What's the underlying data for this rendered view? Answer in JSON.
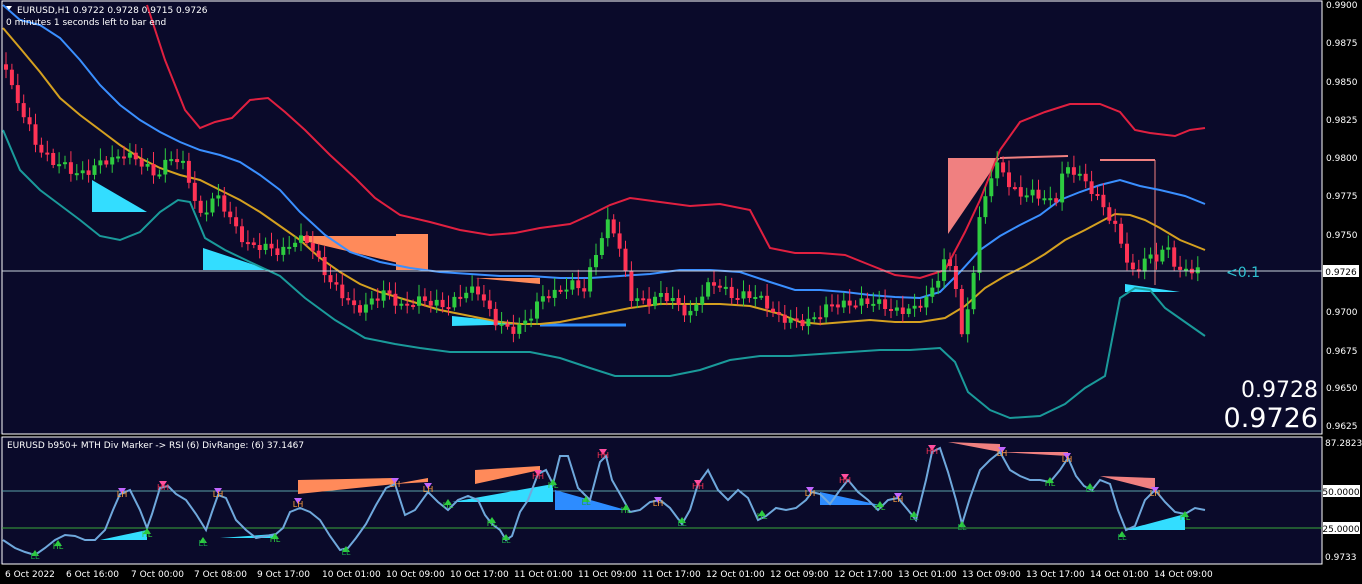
{
  "main_chart": {
    "header": "EURUSD,H1  0.9722 0.9728 0.9715 0.9726",
    "timer": "0 minutes 1 seconds left to bar end",
    "current_price": "0.9726",
    "price_label_current": "0.9726",
    "price_label_ask": "0.9728",
    "offset_label": "<0.1",
    "y_ticks": [
      "0.9900",
      "0.9875",
      "0.9850",
      "0.9825",
      "0.9800",
      "0.9775",
      "0.9750",
      "0.9725",
      "0.9700",
      "0.9675",
      "0.9650",
      "0.9625"
    ]
  },
  "indicator": {
    "title": "EURUSD b950+ MTH Div Marker -> RSI (6) DivRange: (6) 37.1467",
    "y_ticks": [
      "87.2823",
      "50.0000",
      "25.0000",
      "0.9733"
    ]
  },
  "x_axis": {
    "ticks": [
      "6 Oct 2022",
      "6 Oct 16:00",
      "7 Oct 00:00",
      "7 Oct 08:00",
      "9 Oct 17:00",
      "10 Oct 01:00",
      "10 Oct 09:00",
      "10 Oct 17:00",
      "11 Oct 01:00",
      "11 Oct 09:00",
      "11 Oct 17:00",
      "12 Oct 01:00",
      "12 Oct 09:00",
      "12 Oct 17:00",
      "13 Oct 01:00",
      "13 Oct 09:00",
      "13 Oct 17:00",
      "14 Oct 01:00",
      "14 Oct 09:00"
    ]
  },
  "markers": [
    {
      "t": "LH",
      "x": 122,
      "y": 497
    },
    {
      "t": "HH",
      "x": 163,
      "y": 490
    },
    {
      "t": "LH",
      "x": 218,
      "y": 497
    },
    {
      "t": "LH",
      "x": 298,
      "y": 507
    },
    {
      "t": "LH",
      "x": 395,
      "y": 487
    },
    {
      "t": "LH",
      "x": 428,
      "y": 492
    },
    {
      "t": "HH",
      "x": 538,
      "y": 479
    },
    {
      "t": "HH",
      "x": 603,
      "y": 458
    },
    {
      "t": "HH",
      "x": 698,
      "y": 489
    },
    {
      "t": "LH",
      "x": 658,
      "y": 506
    },
    {
      "t": "LH",
      "x": 810,
      "y": 496
    },
    {
      "t": "HH",
      "x": 845,
      "y": 483
    },
    {
      "t": "LH",
      "x": 898,
      "y": 502
    },
    {
      "t": "HH",
      "x": 932,
      "y": 454
    },
    {
      "t": "LH",
      "x": 1002,
      "y": 456
    },
    {
      "t": "LH",
      "x": 1067,
      "y": 462
    },
    {
      "t": "LH",
      "x": 1155,
      "y": 496
    },
    {
      "t": "HL",
      "x": 58,
      "y": 549
    },
    {
      "t": "LL",
      "x": 35,
      "y": 559
    },
    {
      "t": "HL",
      "x": 147,
      "y": 537
    },
    {
      "t": "LL",
      "x": 203,
      "y": 546
    },
    {
      "t": "HL",
      "x": 275,
      "y": 542
    },
    {
      "t": "LL",
      "x": 346,
      "y": 555
    },
    {
      "t": "HL",
      "x": 448,
      "y": 508
    },
    {
      "t": "HL",
      "x": 492,
      "y": 526
    },
    {
      "t": "LL",
      "x": 506,
      "y": 543
    },
    {
      "t": "HL",
      "x": 553,
      "y": 488
    },
    {
      "t": "LL",
      "x": 586,
      "y": 505
    },
    {
      "t": "HL",
      "x": 626,
      "y": 513
    },
    {
      "t": "LL",
      "x": 682,
      "y": 526
    },
    {
      "t": "HL",
      "x": 762,
      "y": 519
    },
    {
      "t": "HL",
      "x": 880,
      "y": 510
    },
    {
      "t": "LL",
      "x": 914,
      "y": 520
    },
    {
      "t": "LL",
      "x": 962,
      "y": 530
    },
    {
      "t": "HL",
      "x": 1050,
      "y": 486
    },
    {
      "t": "LL",
      "x": 1090,
      "y": 492
    },
    {
      "t": "LL",
      "x": 1122,
      "y": 540
    },
    {
      "t": "HL",
      "x": 1185,
      "y": 520
    }
  ],
  "colors": {
    "background": "#0a0a2a",
    "bull": "#2ecc40",
    "bear": "#ff3355",
    "upper_band": "#e02040",
    "lower_band": "#1a9a9a",
    "ma_fast": "#3a8fff",
    "ma_slow": "#d4a020",
    "rsi": "#6fa8dc"
  }
}
